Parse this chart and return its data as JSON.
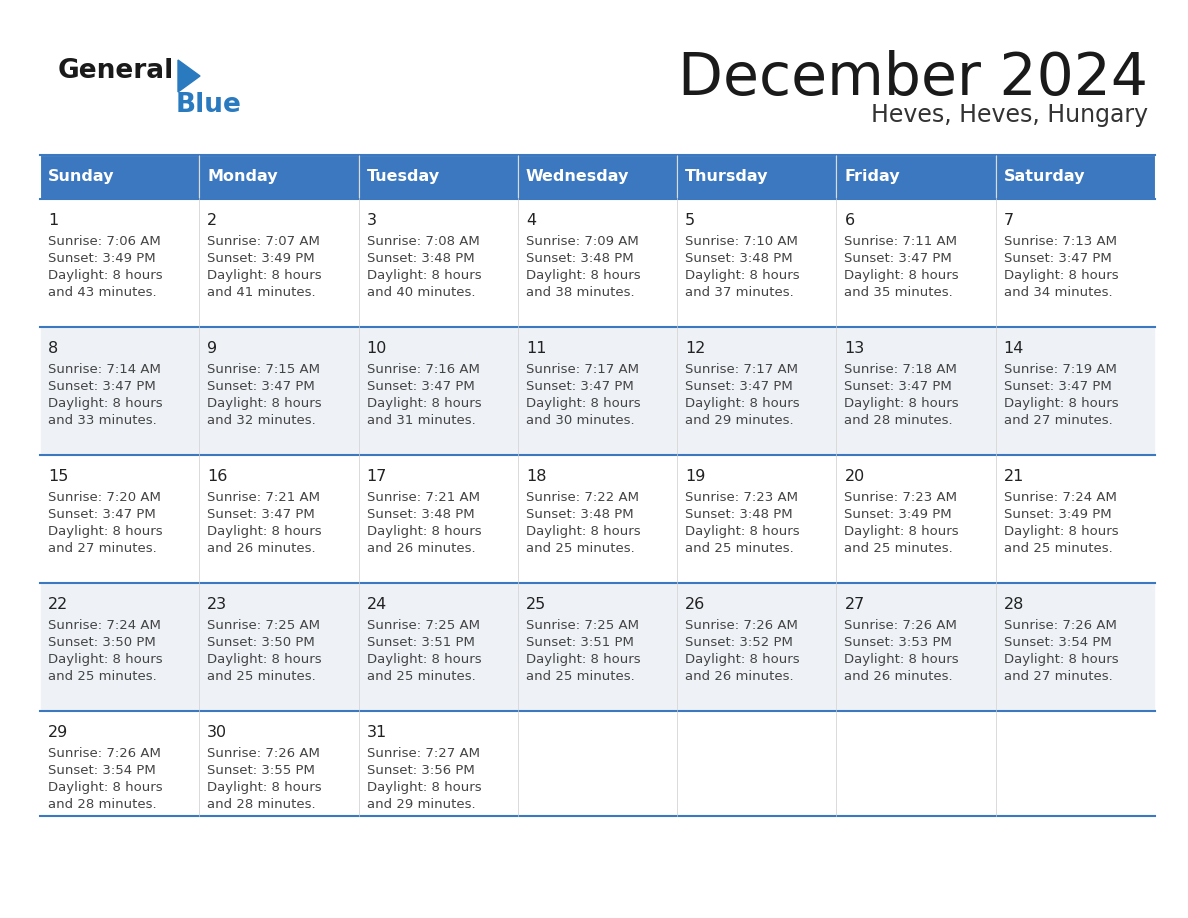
{
  "title": "December 2024",
  "subtitle": "Heves, Heves, Hungary",
  "header_bg_color": "#3b78bf",
  "header_text_color": "#ffffff",
  "day_names": [
    "Sunday",
    "Monday",
    "Tuesday",
    "Wednesday",
    "Thursday",
    "Friday",
    "Saturday"
  ],
  "cell_bg_even": "#eef2f7",
  "cell_bg_odd": "#ffffff",
  "cell_border_color": "#3b78bf",
  "day_num_color": "#222222",
  "info_text_color": "#444444",
  "title_color": "#1a1a1a",
  "subtitle_color": "#333333",
  "logo_general_color": "#1a1a1a",
  "logo_blue_color": "#2a7abf",
  "weeks": [
    [
      {
        "day": 1,
        "sunrise": "7:06 AM",
        "sunset": "3:49 PM",
        "daylight": "8 hours and 43 minutes."
      },
      {
        "day": 2,
        "sunrise": "7:07 AM",
        "sunset": "3:49 PM",
        "daylight": "8 hours and 41 minutes."
      },
      {
        "day": 3,
        "sunrise": "7:08 AM",
        "sunset": "3:48 PM",
        "daylight": "8 hours and 40 minutes."
      },
      {
        "day": 4,
        "sunrise": "7:09 AM",
        "sunset": "3:48 PM",
        "daylight": "8 hours and 38 minutes."
      },
      {
        "day": 5,
        "sunrise": "7:10 AM",
        "sunset": "3:48 PM",
        "daylight": "8 hours and 37 minutes."
      },
      {
        "day": 6,
        "sunrise": "7:11 AM",
        "sunset": "3:47 PM",
        "daylight": "8 hours and 35 minutes."
      },
      {
        "day": 7,
        "sunrise": "7:13 AM",
        "sunset": "3:47 PM",
        "daylight": "8 hours and 34 minutes."
      }
    ],
    [
      {
        "day": 8,
        "sunrise": "7:14 AM",
        "sunset": "3:47 PM",
        "daylight": "8 hours and 33 minutes."
      },
      {
        "day": 9,
        "sunrise": "7:15 AM",
        "sunset": "3:47 PM",
        "daylight": "8 hours and 32 minutes."
      },
      {
        "day": 10,
        "sunrise": "7:16 AM",
        "sunset": "3:47 PM",
        "daylight": "8 hours and 31 minutes."
      },
      {
        "day": 11,
        "sunrise": "7:17 AM",
        "sunset": "3:47 PM",
        "daylight": "8 hours and 30 minutes."
      },
      {
        "day": 12,
        "sunrise": "7:17 AM",
        "sunset": "3:47 PM",
        "daylight": "8 hours and 29 minutes."
      },
      {
        "day": 13,
        "sunrise": "7:18 AM",
        "sunset": "3:47 PM",
        "daylight": "8 hours and 28 minutes."
      },
      {
        "day": 14,
        "sunrise": "7:19 AM",
        "sunset": "3:47 PM",
        "daylight": "8 hours and 27 minutes."
      }
    ],
    [
      {
        "day": 15,
        "sunrise": "7:20 AM",
        "sunset": "3:47 PM",
        "daylight": "8 hours and 27 minutes."
      },
      {
        "day": 16,
        "sunrise": "7:21 AM",
        "sunset": "3:47 PM",
        "daylight": "8 hours and 26 minutes."
      },
      {
        "day": 17,
        "sunrise": "7:21 AM",
        "sunset": "3:48 PM",
        "daylight": "8 hours and 26 minutes."
      },
      {
        "day": 18,
        "sunrise": "7:22 AM",
        "sunset": "3:48 PM",
        "daylight": "8 hours and 25 minutes."
      },
      {
        "day": 19,
        "sunrise": "7:23 AM",
        "sunset": "3:48 PM",
        "daylight": "8 hours and 25 minutes."
      },
      {
        "day": 20,
        "sunrise": "7:23 AM",
        "sunset": "3:49 PM",
        "daylight": "8 hours and 25 minutes."
      },
      {
        "day": 21,
        "sunrise": "7:24 AM",
        "sunset": "3:49 PM",
        "daylight": "8 hours and 25 minutes."
      }
    ],
    [
      {
        "day": 22,
        "sunrise": "7:24 AM",
        "sunset": "3:50 PM",
        "daylight": "8 hours and 25 minutes."
      },
      {
        "day": 23,
        "sunrise": "7:25 AM",
        "sunset": "3:50 PM",
        "daylight": "8 hours and 25 minutes."
      },
      {
        "day": 24,
        "sunrise": "7:25 AM",
        "sunset": "3:51 PM",
        "daylight": "8 hours and 25 minutes."
      },
      {
        "day": 25,
        "sunrise": "7:25 AM",
        "sunset": "3:51 PM",
        "daylight": "8 hours and 25 minutes."
      },
      {
        "day": 26,
        "sunrise": "7:26 AM",
        "sunset": "3:52 PM",
        "daylight": "8 hours and 26 minutes."
      },
      {
        "day": 27,
        "sunrise": "7:26 AM",
        "sunset": "3:53 PM",
        "daylight": "8 hours and 26 minutes."
      },
      {
        "day": 28,
        "sunrise": "7:26 AM",
        "sunset": "3:54 PM",
        "daylight": "8 hours and 27 minutes."
      }
    ],
    [
      {
        "day": 29,
        "sunrise": "7:26 AM",
        "sunset": "3:54 PM",
        "daylight": "8 hours and 28 minutes."
      },
      {
        "day": 30,
        "sunrise": "7:26 AM",
        "sunset": "3:55 PM",
        "daylight": "8 hours and 28 minutes."
      },
      {
        "day": 31,
        "sunrise": "7:27 AM",
        "sunset": "3:56 PM",
        "daylight": "8 hours and 29 minutes."
      },
      null,
      null,
      null,
      null
    ]
  ]
}
